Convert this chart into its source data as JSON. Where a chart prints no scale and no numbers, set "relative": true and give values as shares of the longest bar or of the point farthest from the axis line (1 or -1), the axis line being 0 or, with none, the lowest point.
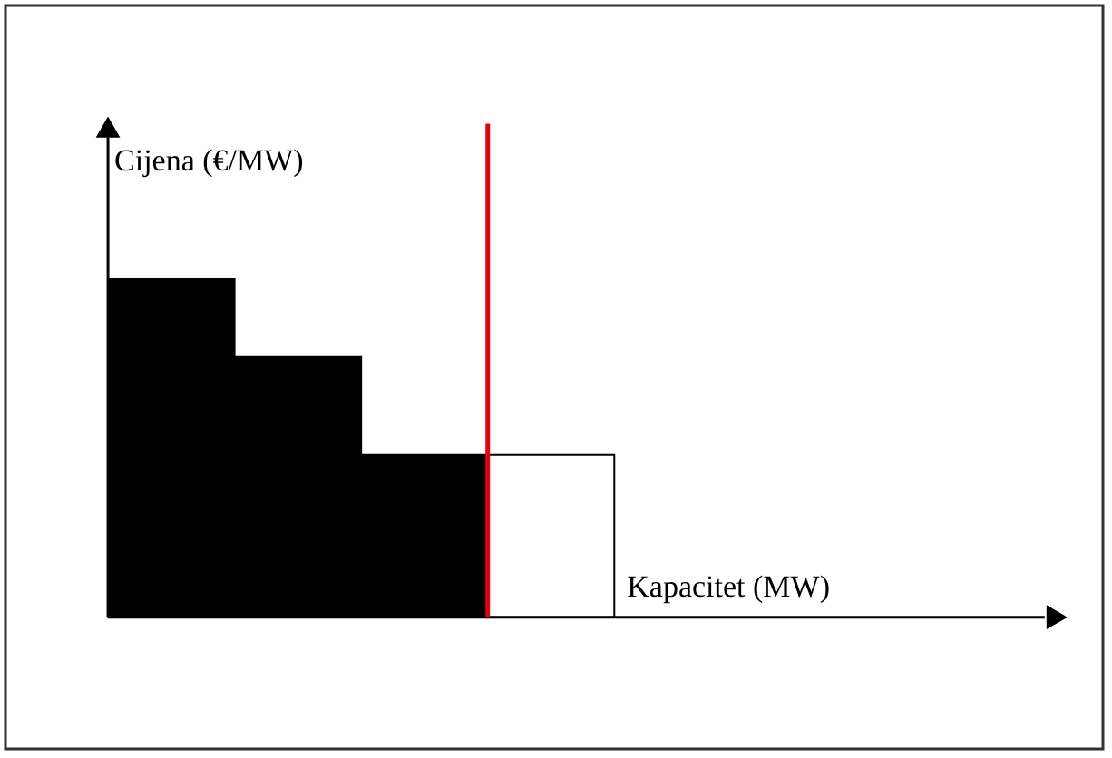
{
  "chart_data": {
    "type": "bar",
    "relative": true,
    "xlabel": "Kapacitet (MW)",
    "ylabel": "Cijena (€/MW)",
    "categories": [
      null,
      null,
      null,
      null
    ],
    "values": [
      1,
      0.77,
      0.48,
      0.48
    ],
    "colors": [
      "#000000",
      "#000000",
      "#000000",
      "#ffffff"
    ],
    "tick_labels": false
  }
}
